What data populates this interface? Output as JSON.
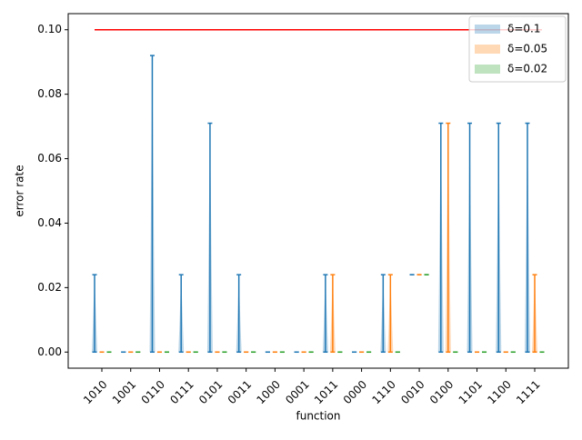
{
  "chart_data": {
    "type": "violin",
    "xlabel": "function",
    "ylabel": "error rate",
    "categories": [
      "1010",
      "1001",
      "0110",
      "0111",
      "0101",
      "0011",
      "1000",
      "0001",
      "1011",
      "0000",
      "1110",
      "0010",
      "0100",
      "1101",
      "1100",
      "1111"
    ],
    "series": [
      {
        "name": "δ=0.1",
        "color": "#1f77b4",
        "mins": [
          0,
          0,
          0,
          0,
          0,
          0,
          0,
          0,
          0,
          0,
          0,
          0.024,
          0,
          0,
          0,
          0
        ],
        "maxs": [
          0.024,
          0,
          0.092,
          0.024,
          0.071,
          0.024,
          0,
          0,
          0.024,
          0,
          0.024,
          0.024,
          0.071,
          0.071,
          0.071,
          0.071
        ]
      },
      {
        "name": "δ=0.05",
        "color": "#ff7f0e",
        "mins": [
          0,
          0,
          0,
          0,
          0,
          0,
          0,
          0,
          0,
          0,
          0,
          0.024,
          0,
          0,
          0,
          0
        ],
        "maxs": [
          0,
          0,
          0,
          0,
          0,
          0,
          0,
          0,
          0.024,
          0,
          0.024,
          0.024,
          0.071,
          0,
          0,
          0.024
        ]
      },
      {
        "name": "δ=0.02",
        "color": "#2ca02c",
        "mins": [
          0,
          0,
          0,
          0,
          0,
          0,
          0,
          0,
          0,
          0,
          0,
          0.024,
          0,
          0,
          0,
          0
        ],
        "maxs": [
          0,
          0,
          0,
          0,
          0,
          0,
          0,
          0,
          0,
          0,
          0,
          0.024,
          0,
          0,
          0,
          0
        ]
      }
    ],
    "threshold": 0.1,
    "threshold_color": "#ff0000",
    "ylim": [
      -0.005,
      0.105
    ],
    "yticks": [
      {
        "value": 0,
        "label": "0.00"
      },
      {
        "value": 0.02,
        "label": "0.02"
      },
      {
        "value": 0.04,
        "label": "0.04"
      },
      {
        "value": 0.06,
        "label": "0.06"
      },
      {
        "value": 0.08,
        "label": "0.08"
      },
      {
        "value": 0.1,
        "label": "0.10"
      }
    ],
    "legend": "upper right"
  }
}
